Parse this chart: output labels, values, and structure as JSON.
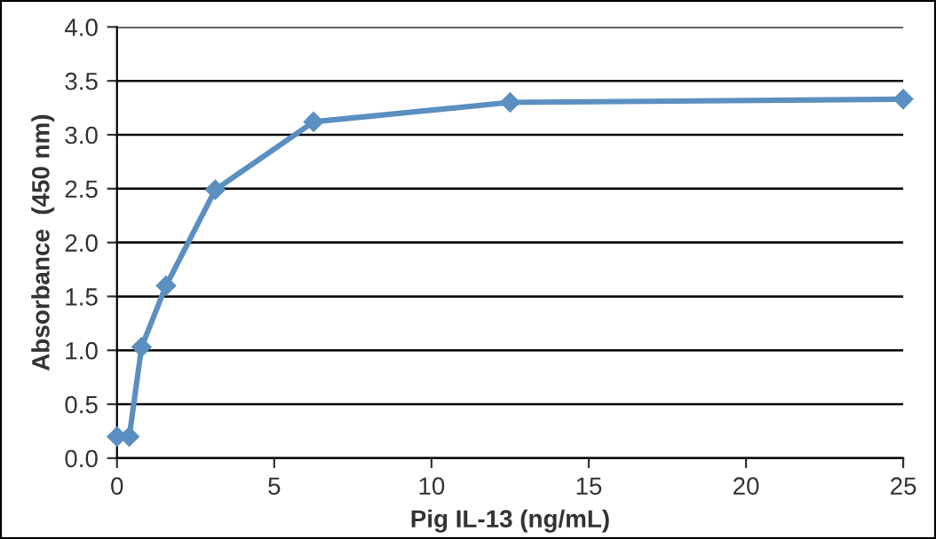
{
  "chart_data": {
    "type": "line",
    "xlabel": "Pig IL-13 (ng/mL)",
    "ylabel": "Absorbance  (450 nm)",
    "x": [
      0,
      0.39,
      0.78,
      1.56,
      3.125,
      6.25,
      12.5,
      25
    ],
    "series": [
      {
        "color": "#5b8fc1",
        "values": [
          0.2,
          0.2,
          1.03,
          1.6,
          2.49,
          3.12,
          3.3,
          3.33
        ]
      }
    ],
    "xlim": [
      0,
      25
    ],
    "xticks": [
      0,
      5,
      10,
      15,
      20,
      25
    ],
    "ylim": [
      0,
      4
    ],
    "yticks": [
      {
        "value": 0,
        "label": "0.0"
      },
      {
        "value": 0.5,
        "label": "0.5"
      },
      {
        "value": 1,
        "label": "1.0"
      },
      {
        "value": 1.5,
        "label": "1.5"
      },
      {
        "value": 2,
        "label": "2.0"
      },
      {
        "value": 2.5,
        "label": "2.5"
      },
      {
        "value": 3,
        "label": "3.0"
      },
      {
        "value": 3.5,
        "label": "3.5"
      },
      {
        "value": 4,
        "label": "4.0"
      }
    ],
    "grid": "y",
    "marker": "diamond",
    "line_style": "solid"
  }
}
